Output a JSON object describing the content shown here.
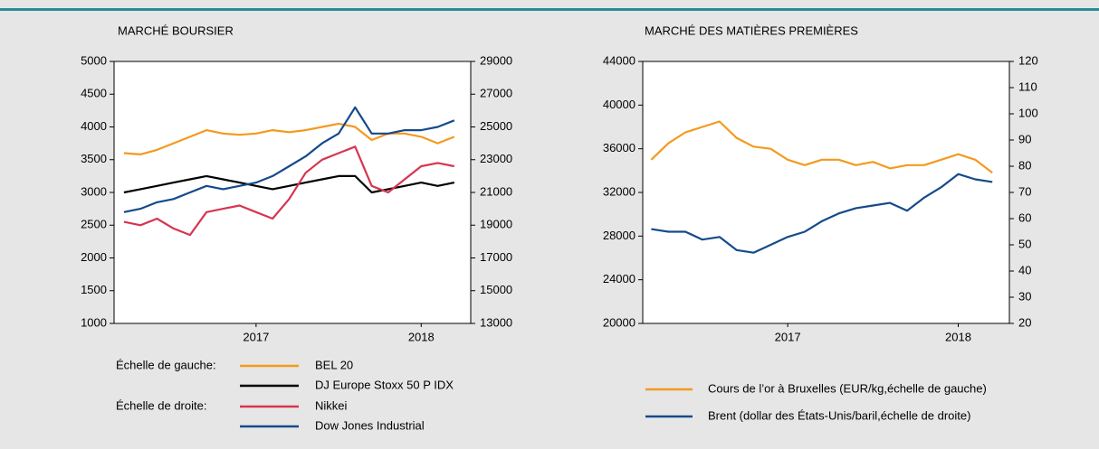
{
  "chart_data": [
    {
      "type": "line",
      "title": "MARCHÉ BOURSIER",
      "legend_notes": [
        "Échelle de gauche:",
        "Échelle de droite:"
      ],
      "x": [
        2016.7,
        2016.8,
        2016.9,
        2017.0,
        2017.1,
        2017.2,
        2017.3,
        2017.4,
        2017.5,
        2017.6,
        2017.7,
        2017.8,
        2017.9,
        2018.0,
        2018.1,
        2018.2,
        2018.3,
        2018.4,
        2018.5,
        2018.6,
        2018.7
      ],
      "xlim": [
        2016.64,
        2018.8
      ],
      "xticks": [
        {
          "value": 2017.5,
          "label": "2017"
        },
        {
          "value": 2018.5,
          "label": "2018"
        }
      ],
      "ylim": [
        1000,
        5000
      ],
      "yticks": [
        1000,
        1500,
        2000,
        2500,
        3000,
        3500,
        4000,
        4500,
        5000
      ],
      "y2lim": [
        13000,
        29000
      ],
      "y2ticks": [
        13000,
        15000,
        17000,
        19000,
        21000,
        23000,
        25000,
        27000,
        29000
      ],
      "series": [
        {
          "name": "BEL 20",
          "color": "#f39a1e",
          "values": [
            3600,
            3580,
            3650,
            3750,
            3850,
            3950,
            3900,
            3880,
            3900,
            3950,
            3920,
            3950,
            4000,
            4050,
            4000,
            3800,
            3900,
            3900,
            3850,
            3750,
            3850
          ]
        },
        {
          "name": "DJ Europe Stoxx 50 P IDX",
          "color": "#000000",
          "values": [
            3000,
            3050,
            3100,
            3150,
            3200,
            3250,
            3200,
            3150,
            3100,
            3050,
            3100,
            3150,
            3200,
            3250,
            3250,
            3000,
            3050,
            3100,
            3150,
            3100,
            3150
          ]
        },
        {
          "name": "Nikkei",
          "color": "#d7354f",
          "axis": "y2",
          "values": [
            19200,
            19000,
            19400,
            18800,
            18400,
            19800,
            20000,
            20200,
            19800,
            19400,
            20600,
            22200,
            23000,
            23400,
            23800,
            21400,
            21000,
            21800,
            22600,
            22800,
            22600
          ]
        },
        {
          "name": "Dow Jones Industrial",
          "color": "#154a8a",
          "axis": "y2",
          "values": [
            19800,
            20000,
            20400,
            20600,
            21000,
            21400,
            21200,
            21400,
            21600,
            22000,
            22600,
            23200,
            24000,
            24600,
            26200,
            24600,
            24600,
            24800,
            24800,
            25000,
            25400
          ]
        }
      ]
    },
    {
      "type": "line",
      "title": "MARCHÉ DES MATIÈRES PREMIÈRES",
      "x": [
        2016.7,
        2016.8,
        2016.9,
        2017.0,
        2017.1,
        2017.2,
        2017.3,
        2017.4,
        2017.5,
        2017.6,
        2017.7,
        2017.8,
        2017.9,
        2018.0,
        2018.1,
        2018.2,
        2018.3,
        2018.4,
        2018.5,
        2018.6,
        2018.7
      ],
      "xlim": [
        2016.65,
        2018.8
      ],
      "xticks": [
        {
          "value": 2017.5,
          "label": "2017"
        },
        {
          "value": 2018.5,
          "label": "2018"
        }
      ],
      "ylim": [
        20000,
        44000
      ],
      "yticks": [
        20000,
        24000,
        28000,
        32000,
        36000,
        40000,
        44000
      ],
      "y2lim": [
        20,
        120
      ],
      "y2ticks": [
        20,
        30,
        40,
        50,
        60,
        70,
        80,
        90,
        100,
        110,
        120
      ],
      "series": [
        {
          "name": "Cours de l’or à Bruxelles (EUR/kg,échelle de gauche)",
          "color": "#f39a1e",
          "values": [
            35000,
            36500,
            37500,
            38000,
            38500,
            37000,
            36200,
            36000,
            35000,
            34500,
            35000,
            35000,
            34500,
            34800,
            34200,
            34500,
            34500,
            35000,
            35500,
            35000,
            33800
          ]
        },
        {
          "name": "Brent (dollar des États-Unis/baril,échelle de droite)",
          "color": "#154a8a",
          "axis": "y2",
          "values": [
            56,
            55,
            55,
            52,
            53,
            48,
            47,
            50,
            53,
            55,
            59,
            62,
            64,
            65,
            66,
            63,
            68,
            72,
            77,
            75,
            74
          ]
        }
      ]
    }
  ]
}
